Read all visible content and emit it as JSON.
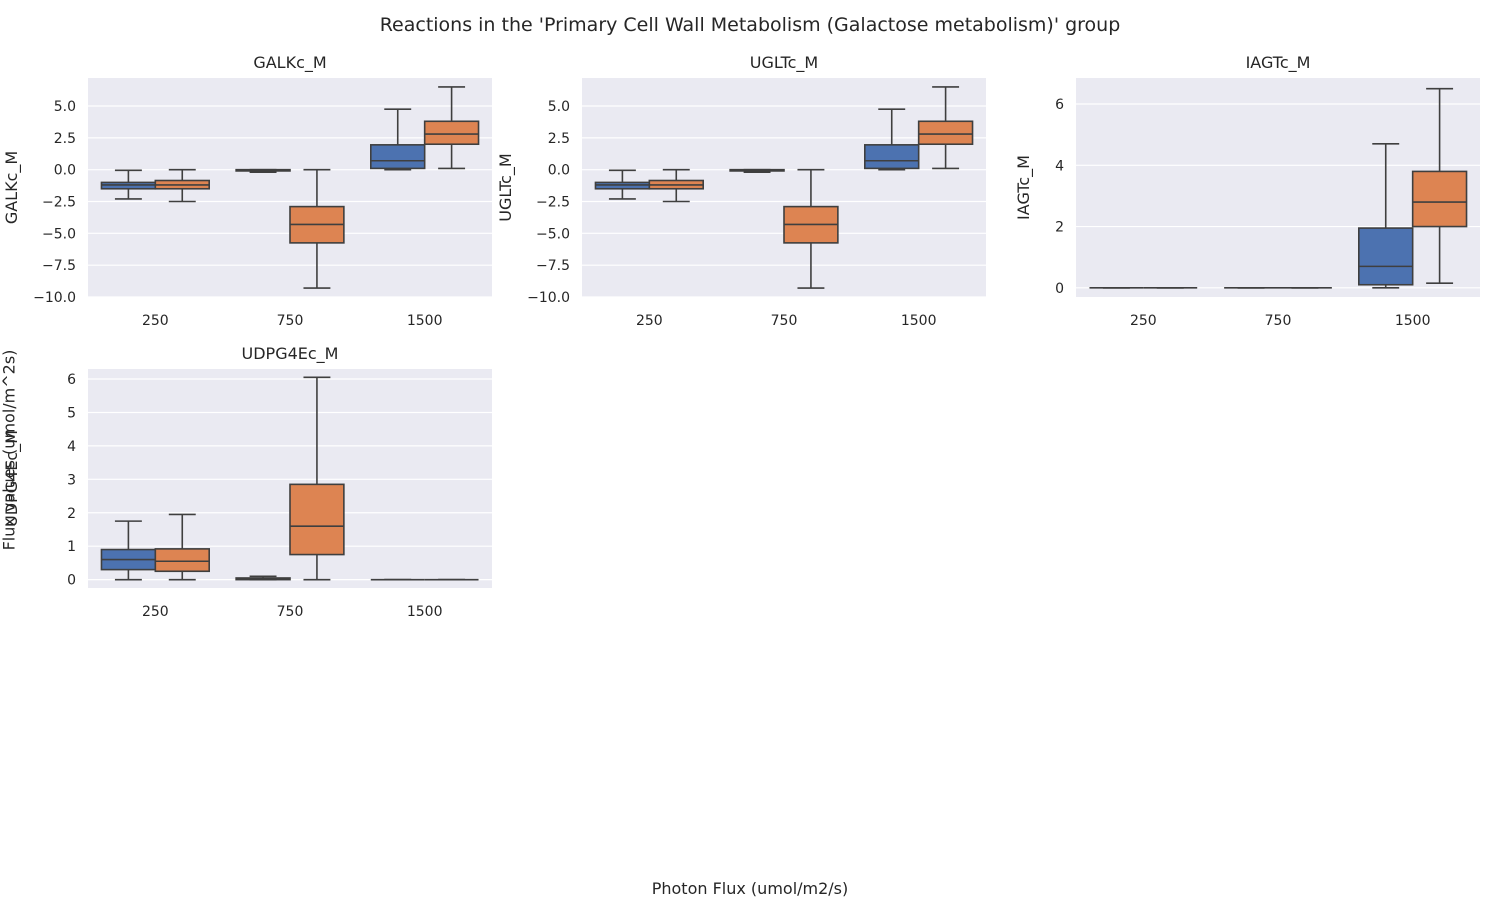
{
  "figure": {
    "title": "Reactions in the 'Primary Cell Wall Metabolism (Galactose metabolism)' group",
    "xlabel": "Photon Flux (umol/m2/s)",
    "ylabel": "Flux values (umol/m^2s)"
  },
  "chart_data": [
    {
      "type": "box",
      "title": "GALKc_M",
      "ylabel": "GALKc_M",
      "categories": [
        "250",
        "750",
        "1500"
      ],
      "ylim": [
        -10.0,
        7.2
      ],
      "yticks": [
        -10.0,
        -7.5,
        -5.0,
        -2.5,
        0.0,
        2.5,
        5.0
      ],
      "ytick_labels": [
        "−10.0",
        "−7.5",
        "−5.0",
        "−2.5",
        "0.0",
        "2.5",
        "5.0"
      ],
      "series": [
        {
          "color": "#4c72b0",
          "boxes": [
            {
              "whislo": -2.3,
              "q1": -1.5,
              "med": -1.2,
              "q3": -1.0,
              "whishi": -0.05
            },
            {
              "whislo": -0.2,
              "q1": -0.1,
              "med": -0.05,
              "q3": 0.0,
              "whishi": 0.0
            },
            {
              "whislo": 0.0,
              "q1": 0.1,
              "med": 0.7,
              "q3": 1.95,
              "whishi": 4.75
            }
          ]
        },
        {
          "color": "#dd8452",
          "boxes": [
            {
              "whislo": -2.5,
              "q1": -1.5,
              "med": -1.2,
              "q3": -0.85,
              "whishi": 0.0
            },
            {
              "whislo": -9.3,
              "q1": -5.75,
              "med": -4.3,
              "q3": -2.9,
              "whishi": 0.0
            },
            {
              "whislo": 0.1,
              "q1": 2.0,
              "med": 2.8,
              "q3": 3.8,
              "whishi": 6.5
            }
          ]
        }
      ]
    },
    {
      "type": "box",
      "title": "UGLTc_M",
      "ylabel": "UGLTc_M",
      "categories": [
        "250",
        "750",
        "1500"
      ],
      "ylim": [
        -10.0,
        7.2
      ],
      "yticks": [
        -10.0,
        -7.5,
        -5.0,
        -2.5,
        0.0,
        2.5,
        5.0
      ],
      "ytick_labels": [
        "−10.0",
        "−7.5",
        "−5.0",
        "−2.5",
        "0.0",
        "2.5",
        "5.0"
      ],
      "series": [
        {
          "color": "#4c72b0",
          "boxes": [
            {
              "whislo": -2.3,
              "q1": -1.5,
              "med": -1.2,
              "q3": -1.0,
              "whishi": -0.05
            },
            {
              "whislo": -0.2,
              "q1": -0.1,
              "med": -0.05,
              "q3": 0.0,
              "whishi": 0.0
            },
            {
              "whislo": 0.0,
              "q1": 0.1,
              "med": 0.7,
              "q3": 1.95,
              "whishi": 4.75
            }
          ]
        },
        {
          "color": "#dd8452",
          "boxes": [
            {
              "whislo": -2.5,
              "q1": -1.5,
              "med": -1.2,
              "q3": -0.85,
              "whishi": 0.0
            },
            {
              "whislo": -9.3,
              "q1": -5.75,
              "med": -4.3,
              "q3": -2.9,
              "whishi": 0.0
            },
            {
              "whislo": 0.1,
              "q1": 2.0,
              "med": 2.8,
              "q3": 3.8,
              "whishi": 6.5
            }
          ]
        }
      ]
    },
    {
      "type": "box",
      "title": "IAGTc_M",
      "ylabel": "IAGTc_M",
      "categories": [
        "250",
        "750",
        "1500"
      ],
      "ylim": [
        -0.3,
        6.85
      ],
      "yticks": [
        0,
        2,
        4,
        6
      ],
      "ytick_labels": [
        "0",
        "2",
        "4",
        "6"
      ],
      "series": [
        {
          "color": "#4c72b0",
          "boxes": [
            {
              "whislo": 0,
              "q1": 0,
              "med": 0,
              "q3": 0,
              "whishi": 0
            },
            {
              "whislo": 0,
              "q1": 0,
              "med": 0,
              "q3": 0,
              "whishi": 0
            },
            {
              "whislo": 0.0,
              "q1": 0.1,
              "med": 0.7,
              "q3": 1.95,
              "whishi": 4.7
            }
          ]
        },
        {
          "color": "#dd8452",
          "boxes": [
            {
              "whislo": 0,
              "q1": 0,
              "med": 0,
              "q3": 0,
              "whishi": 0
            },
            {
              "whislo": 0,
              "q1": 0,
              "med": 0,
              "q3": 0,
              "whishi": 0
            },
            {
              "whislo": 0.15,
              "q1": 2.0,
              "med": 2.8,
              "q3": 3.8,
              "whishi": 6.5
            }
          ]
        }
      ]
    },
    {
      "type": "box",
      "title": "UDPG4Ec_M",
      "ylabel": "UDPG4Ec_M",
      "categories": [
        "250",
        "750",
        "1500"
      ],
      "ylim": [
        -0.25,
        6.3
      ],
      "yticks": [
        0,
        1,
        2,
        3,
        4,
        5,
        6
      ],
      "ytick_labels": [
        "0",
        "1",
        "2",
        "3",
        "4",
        "5",
        "6"
      ],
      "series": [
        {
          "color": "#4c72b0",
          "boxes": [
            {
              "whislo": 0.0,
              "q1": 0.3,
              "med": 0.6,
              "q3": 0.9,
              "whishi": 1.75
            },
            {
              "whislo": 0.0,
              "q1": 0.0,
              "med": 0.02,
              "q3": 0.05,
              "whishi": 0.1
            },
            {
              "whislo": 0,
              "q1": 0,
              "med": 0,
              "q3": 0,
              "whishi": 0
            }
          ]
        },
        {
          "color": "#dd8452",
          "boxes": [
            {
              "whislo": 0.0,
              "q1": 0.25,
              "med": 0.55,
              "q3": 0.92,
              "whishi": 1.95
            },
            {
              "whislo": 0.0,
              "q1": 0.75,
              "med": 1.6,
              "q3": 2.85,
              "whishi": 6.05
            },
            {
              "whislo": 0,
              "q1": 0,
              "med": 0,
              "q3": 0,
              "whishi": 0
            }
          ]
        }
      ]
    }
  ]
}
